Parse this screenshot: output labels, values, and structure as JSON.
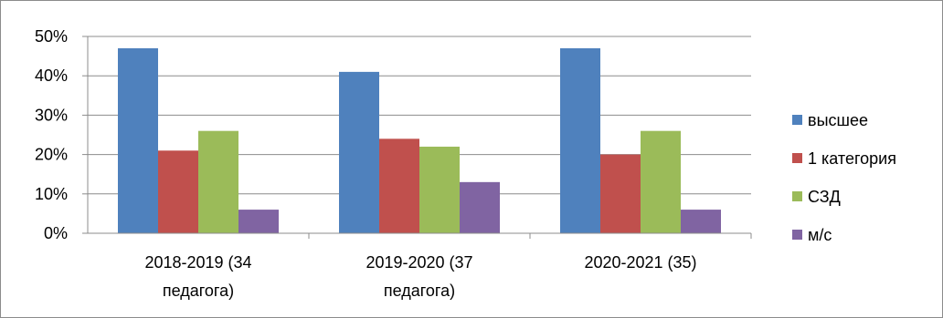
{
  "chart_data": {
    "type": "bar",
    "categories": [
      [
        "2018-2019 (34",
        "педагога)"
      ],
      [
        "2019-2020 (37",
        "педагога)"
      ],
      [
        "2020-2021 (35)"
      ]
    ],
    "series": [
      {
        "name": "высшее",
        "color": "#4f81bd",
        "values": [
          47,
          41,
          47
        ]
      },
      {
        "name": "1 категория",
        "color": "#c0504d",
        "values": [
          21,
          24,
          20
        ]
      },
      {
        "name": "СЗД",
        "color": "#9bbb59",
        "values": [
          26,
          22,
          26
        ]
      },
      {
        "name": "м/с",
        "color": "#8064a2",
        "values": [
          6,
          13,
          6
        ]
      }
    ],
    "yticks": [
      "0%",
      "10%",
      "20%",
      "30%",
      "40%",
      "50%"
    ],
    "ylim": [
      0,
      50
    ],
    "grid": true,
    "legend_position": "right"
  }
}
